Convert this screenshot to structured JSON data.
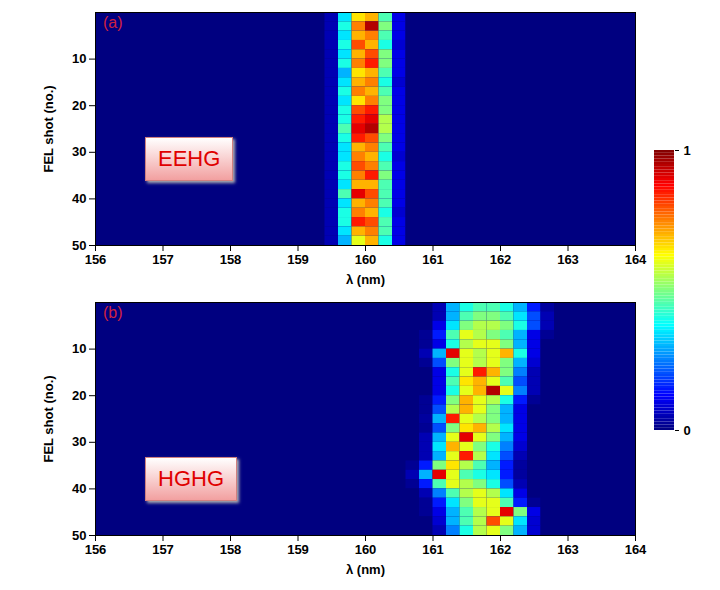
{
  "chart_data": [
    {
      "type": "heatmap",
      "panel_label": "(a)",
      "annotation": "EEHG",
      "xlabel": "λ (nm)",
      "ylabel": "FEL shot (no.)",
      "xlim": [
        156,
        164
      ],
      "xticks": [
        156,
        157,
        158,
        159,
        160,
        161,
        162,
        163,
        164
      ],
      "ylim": [
        0,
        50
      ],
      "yticks": [
        10,
        20,
        30,
        40,
        50
      ],
      "x_bins": [
        159.4,
        159.6,
        159.8,
        160.0,
        160.2,
        160.4,
        160.6,
        160.8
      ],
      "y_bins": [
        0,
        2,
        4,
        6,
        8,
        10,
        12,
        14,
        16,
        18,
        20,
        22,
        24,
        26,
        28,
        30,
        32,
        34,
        36,
        38,
        40,
        42,
        44,
        46,
        48,
        50
      ],
      "cells": [
        [
          0.05,
          0.35,
          0.65,
          0.7,
          0.45,
          0.1,
          0
        ],
        [
          0.05,
          0.4,
          0.75,
          0.95,
          0.5,
          0.1,
          0
        ],
        [
          0.05,
          0.35,
          0.7,
          0.75,
          0.45,
          0.1,
          0
        ],
        [
          0.05,
          0.4,
          0.8,
          0.7,
          0.4,
          0.08,
          0
        ],
        [
          0.05,
          0.35,
          0.7,
          0.8,
          0.5,
          0.1,
          0
        ],
        [
          0.05,
          0.4,
          0.75,
          0.85,
          0.5,
          0.1,
          0
        ],
        [
          0.05,
          0.3,
          0.65,
          0.7,
          0.45,
          0.1,
          0
        ],
        [
          0.05,
          0.35,
          0.7,
          0.75,
          0.4,
          0.08,
          0
        ],
        [
          0.05,
          0.4,
          0.75,
          0.7,
          0.45,
          0.1,
          0
        ],
        [
          0.05,
          0.35,
          0.65,
          0.75,
          0.5,
          0.1,
          0
        ],
        [
          0.05,
          0.4,
          0.8,
          0.85,
          0.5,
          0.1,
          0
        ],
        [
          0.05,
          0.4,
          0.85,
          0.9,
          0.55,
          0.1,
          0
        ],
        [
          0.05,
          0.45,
          0.9,
          0.95,
          0.55,
          0.1,
          0
        ],
        [
          0.05,
          0.4,
          0.85,
          0.8,
          0.5,
          0.1,
          0
        ],
        [
          0.05,
          0.35,
          0.7,
          0.75,
          0.45,
          0.1,
          0
        ],
        [
          0.05,
          0.35,
          0.75,
          0.7,
          0.4,
          0.08,
          0
        ],
        [
          0.05,
          0.4,
          0.8,
          0.75,
          0.45,
          0.1,
          0
        ],
        [
          0.05,
          0.4,
          0.75,
          0.85,
          0.5,
          0.1,
          0
        ],
        [
          0.05,
          0.35,
          0.7,
          0.7,
          0.45,
          0.1,
          0
        ],
        [
          0.05,
          0.45,
          0.9,
          0.8,
          0.45,
          0.1,
          0
        ],
        [
          0.05,
          0.35,
          0.7,
          0.75,
          0.45,
          0.1,
          0
        ],
        [
          0.05,
          0.4,
          0.75,
          0.7,
          0.4,
          0.08,
          0
        ],
        [
          0.05,
          0.4,
          0.85,
          0.8,
          0.45,
          0.1,
          0
        ],
        [
          0.05,
          0.35,
          0.7,
          0.75,
          0.45,
          0.1,
          0
        ],
        [
          0.05,
          0.3,
          0.6,
          0.7,
          0.4,
          0.1,
          0
        ]
      ],
      "colorbar": {
        "range": [
          0,
          1
        ],
        "ticks": [
          0,
          1
        ]
      }
    },
    {
      "type": "heatmap",
      "panel_label": "(b)",
      "annotation": "HGHG",
      "xlabel": "λ (nm)",
      "ylabel": "FEL shot (no.)",
      "xlim": [
        156,
        164
      ],
      "xticks": [
        156,
        157,
        158,
        159,
        160,
        161,
        162,
        163,
        164
      ],
      "ylim": [
        0,
        50
      ],
      "yticks": [
        10,
        20,
        30,
        40,
        50
      ],
      "x_bins": [
        160.6,
        160.8,
        161.0,
        161.2,
        161.4,
        161.6,
        161.8,
        162.0,
        162.2,
        162.4,
        162.6,
        162.8,
        163.0
      ],
      "y_bins": [
        0,
        2,
        4,
        6,
        8,
        10,
        12,
        14,
        16,
        18,
        20,
        22,
        24,
        26,
        28,
        30,
        32,
        34,
        36,
        38,
        40,
        42,
        44,
        46,
        48,
        50
      ],
      "cells": [
        [
          0,
          0,
          0.05,
          0.3,
          0.4,
          0.45,
          0.45,
          0.4,
          0.3,
          0.15,
          0.03,
          0
        ],
        [
          0,
          0,
          0.05,
          0.3,
          0.45,
          0.5,
          0.5,
          0.45,
          0.35,
          0.2,
          0.05,
          0
        ],
        [
          0,
          0,
          0.1,
          0.35,
          0.5,
          0.55,
          0.55,
          0.5,
          0.4,
          0.2,
          0.05,
          0
        ],
        [
          0,
          0.02,
          0.15,
          0.45,
          0.6,
          0.55,
          0.5,
          0.45,
          0.3,
          0.1,
          0.02,
          0
        ],
        [
          0,
          0.02,
          0.1,
          0.4,
          0.55,
          0.6,
          0.6,
          0.5,
          0.3,
          0.1,
          0,
          0
        ],
        [
          0,
          0.05,
          0.3,
          0.9,
          0.6,
          0.55,
          0.6,
          0.7,
          0.4,
          0.1,
          0,
          0
        ],
        [
          0,
          0.02,
          0.2,
          0.5,
          0.6,
          0.55,
          0.6,
          0.5,
          0.3,
          0.08,
          0,
          0
        ],
        [
          0,
          0,
          0.1,
          0.4,
          0.6,
          0.85,
          0.7,
          0.5,
          0.25,
          0.05,
          0,
          0
        ],
        [
          0,
          0,
          0.1,
          0.45,
          0.65,
          0.7,
          0.6,
          0.45,
          0.2,
          0.05,
          0,
          0
        ],
        [
          0,
          0,
          0.1,
          0.4,
          0.6,
          0.7,
          0.95,
          0.6,
          0.25,
          0.05,
          0,
          0
        ],
        [
          0,
          0.02,
          0.15,
          0.5,
          0.7,
          0.6,
          0.55,
          0.4,
          0.15,
          0.02,
          0,
          0
        ],
        [
          0,
          0.02,
          0.2,
          0.55,
          0.7,
          0.6,
          0.5,
          0.3,
          0.1,
          0,
          0,
          0
        ],
        [
          0,
          0.03,
          0.3,
          0.85,
          0.6,
          0.55,
          0.5,
          0.3,
          0.1,
          0,
          0,
          0
        ],
        [
          0,
          0.02,
          0.2,
          0.5,
          0.65,
          0.7,
          0.55,
          0.35,
          0.1,
          0,
          0,
          0
        ],
        [
          0,
          0.05,
          0.3,
          0.6,
          0.9,
          0.6,
          0.5,
          0.3,
          0.1,
          0,
          0,
          0
        ],
        [
          0,
          0.05,
          0.35,
          0.7,
          0.6,
          0.5,
          0.4,
          0.25,
          0.08,
          0,
          0,
          0
        ],
        [
          0,
          0.05,
          0.3,
          0.6,
          0.85,
          0.55,
          0.35,
          0.2,
          0.05,
          0,
          0,
          0
        ],
        [
          0.02,
          0.15,
          0.5,
          0.65,
          0.55,
          0.45,
          0.3,
          0.15,
          0.03,
          0,
          0,
          0
        ],
        [
          0.05,
          0.3,
          0.9,
          0.6,
          0.45,
          0.4,
          0.35,
          0.15,
          0.03,
          0,
          0,
          0
        ],
        [
          0.02,
          0.15,
          0.45,
          0.6,
          0.55,
          0.5,
          0.4,
          0.2,
          0.05,
          0,
          0,
          0
        ],
        [
          0,
          0.05,
          0.25,
          0.45,
          0.55,
          0.6,
          0.55,
          0.35,
          0.1,
          0,
          0,
          0
        ],
        [
          0,
          0.02,
          0.15,
          0.35,
          0.5,
          0.6,
          0.6,
          0.45,
          0.15,
          0.02,
          0,
          0
        ],
        [
          0,
          0.02,
          0.1,
          0.3,
          0.45,
          0.55,
          0.6,
          0.9,
          0.5,
          0.1,
          0,
          0
        ],
        [
          0,
          0,
          0.08,
          0.3,
          0.45,
          0.55,
          0.8,
          0.6,
          0.35,
          0.08,
          0,
          0
        ],
        [
          0,
          0,
          0.05,
          0.25,
          0.4,
          0.55,
          0.6,
          0.5,
          0.3,
          0.08,
          0,
          0
        ]
      ]
    }
  ]
}
